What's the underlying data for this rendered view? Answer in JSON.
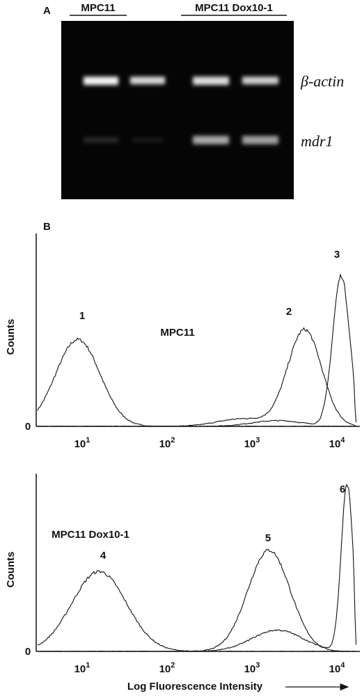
{
  "panel_a": {
    "label": "A",
    "group_left": "MPC11",
    "group_right": "MPC11 Dox10-1",
    "band_top": "β-actin",
    "band_bottom": "mdr1"
  },
  "panel_b": {
    "label": "B",
    "x_ticks": [
      {
        "base": "10",
        "exp": "1"
      },
      {
        "base": "10",
        "exp": "2"
      },
      {
        "base": "10",
        "exp": "3"
      },
      {
        "base": "10",
        "exp": "4"
      }
    ],
    "y_zero": "0",
    "y_label": "Counts",
    "x_label": "Log Fluorescence Intensity",
    "top_plot": {
      "sample": "MPC11",
      "peaks": [
        "1",
        "2",
        "3"
      ]
    },
    "bottom_plot": {
      "sample": "MPC11 Dox10-1",
      "peaks": [
        "4",
        "5",
        "6"
      ]
    }
  }
}
